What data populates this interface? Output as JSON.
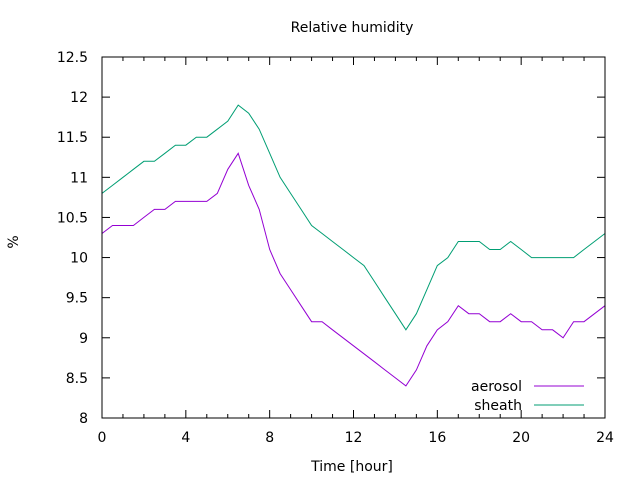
{
  "chart_data": {
    "type": "line",
    "title": "Relative humidity",
    "xlabel": "Time [hour]",
    "ylabel": "%",
    "xlim": [
      0,
      24
    ],
    "ylim": [
      8,
      12.5
    ],
    "x_ticks": [
      "0",
      "4",
      "8",
      "12",
      "16",
      "20",
      "24"
    ],
    "y_ticks": [
      "8",
      "8.5",
      "9",
      "9.5",
      "10",
      "10.5",
      "11",
      "11.5",
      "12",
      "12.5"
    ],
    "grid": false,
    "legend_position": "bottom-right",
    "series": [
      {
        "name": "aerosol",
        "color": "#9400d3",
        "x": [
          0,
          0.5,
          1,
          1.5,
          2,
          2.5,
          3,
          3.5,
          4,
          4.5,
          5,
          5.5,
          6,
          6.5,
          7,
          7.5,
          8,
          8.5,
          9,
          9.5,
          10,
          10.5,
          11,
          11.5,
          12,
          12.5,
          13,
          13.5,
          14,
          14.5,
          15,
          15.5,
          16,
          16.5,
          17,
          17.5,
          18,
          18.5,
          19,
          19.5,
          20,
          20.5,
          21,
          21.5,
          22,
          22.5,
          23,
          23.5,
          24
        ],
        "y": [
          10.3,
          10.4,
          10.4,
          10.4,
          10.5,
          10.6,
          10.6,
          10.7,
          10.7,
          10.7,
          10.7,
          10.8,
          11.1,
          11.3,
          10.9,
          10.6,
          10.1,
          9.8,
          9.6,
          9.4,
          9.2,
          9.2,
          9.1,
          9.0,
          8.9,
          8.8,
          8.7,
          8.6,
          8.5,
          8.4,
          8.6,
          8.9,
          9.1,
          9.2,
          9.4,
          9.3,
          9.3,
          9.2,
          9.2,
          9.3,
          9.2,
          9.2,
          9.1,
          9.1,
          9.0,
          9.2,
          9.2,
          9.3,
          9.4
        ]
      },
      {
        "name": "sheath",
        "color": "#009e73",
        "x": [
          0,
          0.5,
          1,
          1.5,
          2,
          2.5,
          3,
          3.5,
          4,
          4.5,
          5,
          5.5,
          6,
          6.5,
          7,
          7.5,
          8,
          8.5,
          9,
          9.5,
          10,
          10.5,
          11,
          11.5,
          12,
          12.5,
          13,
          13.5,
          14,
          14.5,
          15,
          15.5,
          16,
          16.5,
          17,
          17.5,
          18,
          18.5,
          19,
          19.5,
          20,
          20.5,
          21,
          21.5,
          22,
          22.5,
          23,
          23.5,
          24
        ],
        "y": [
          10.8,
          10.9,
          11.0,
          11.1,
          11.2,
          11.2,
          11.3,
          11.4,
          11.4,
          11.5,
          11.5,
          11.6,
          11.7,
          11.9,
          11.8,
          11.6,
          11.3,
          11.0,
          10.8,
          10.6,
          10.4,
          10.3,
          10.2,
          10.1,
          10.0,
          9.9,
          9.7,
          9.5,
          9.3,
          9.1,
          9.3,
          9.6,
          9.9,
          10.0,
          10.2,
          10.2,
          10.2,
          10.1,
          10.1,
          10.2,
          10.1,
          10.0,
          10.0,
          10.0,
          10.0,
          10.0,
          10.1,
          10.2,
          10.3
        ]
      }
    ]
  }
}
